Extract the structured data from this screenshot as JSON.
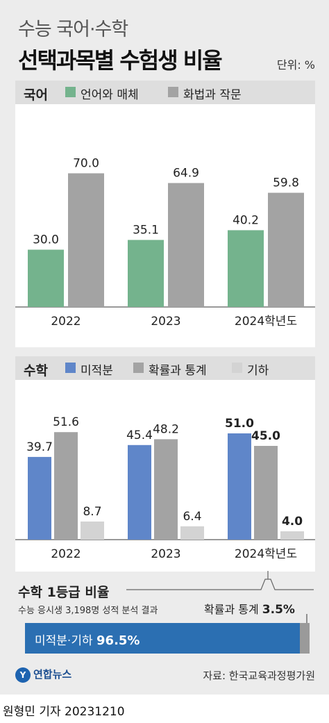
{
  "header": {
    "subtitle": "수능 국어·수학",
    "title": "선택과목별 수험생 비율",
    "unit": "단위: %"
  },
  "colors": {
    "green": "#74b38d",
    "gray": "#a3a3a3",
    "blue": "#5f86c9",
    "lightgray": "#d3d3d3",
    "brandblue": "#2b6fb2"
  },
  "korean": {
    "label": "국어",
    "legend": [
      "언어와 매체",
      "화법과 작문"
    ]
  },
  "math": {
    "label": "수학",
    "legend": [
      "미적분",
      "확률과 통계",
      "기하"
    ]
  },
  "grade1": {
    "title": "수학 1등급 비율",
    "note": "수능 응시생 3,198명 성적 분석 결과",
    "prob_label": "확률과 통계",
    "prob_value": "3.5%",
    "main_label": "미적분·기하",
    "main_value": "96.5%"
  },
  "footer": {
    "logo": "연합뉴스",
    "source": "자료: 한국교육과정평가원",
    "credit": "원형민 기자  20231210"
  },
  "chart_data": [
    {
      "type": "bar",
      "title": "국어",
      "categories": [
        "2022",
        "2023",
        "2024학년도"
      ],
      "series": [
        {
          "name": "언어와 매체",
          "values": [
            30.0,
            35.1,
            40.2
          ],
          "labels": [
            "30.0",
            "35.1",
            "40.2"
          ]
        },
        {
          "name": "화법과 작문",
          "values": [
            70.0,
            64.9,
            59.8
          ],
          "labels": [
            "70.0",
            "64.9",
            "59.8"
          ]
        }
      ],
      "ylim": [
        0,
        80
      ],
      "grid": false,
      "legend": "top"
    },
    {
      "type": "bar",
      "title": "수학",
      "categories": [
        "2022",
        "2023",
        "2024학년도"
      ],
      "series": [
        {
          "name": "미적분",
          "values": [
            39.7,
            45.4,
            51.0
          ],
          "labels": [
            "39.7",
            "45.4",
            "51.0"
          ]
        },
        {
          "name": "확률과 통계",
          "values": [
            51.6,
            48.2,
            45.0
          ],
          "labels": [
            "51.6",
            "48.2",
            "45.0"
          ]
        },
        {
          "name": "기하",
          "values": [
            8.7,
            6.4,
            4.0
          ],
          "labels": [
            "8.7",
            "6.4",
            "4.0"
          ]
        }
      ],
      "ylim": [
        0,
        60
      ],
      "grid": false,
      "legend": "top"
    },
    {
      "type": "bar",
      "title": "수학 1등급 비율",
      "categories": [
        "미적분·기하",
        "확률과 통계"
      ],
      "values": [
        96.5,
        3.5
      ],
      "stacked": true
    }
  ]
}
